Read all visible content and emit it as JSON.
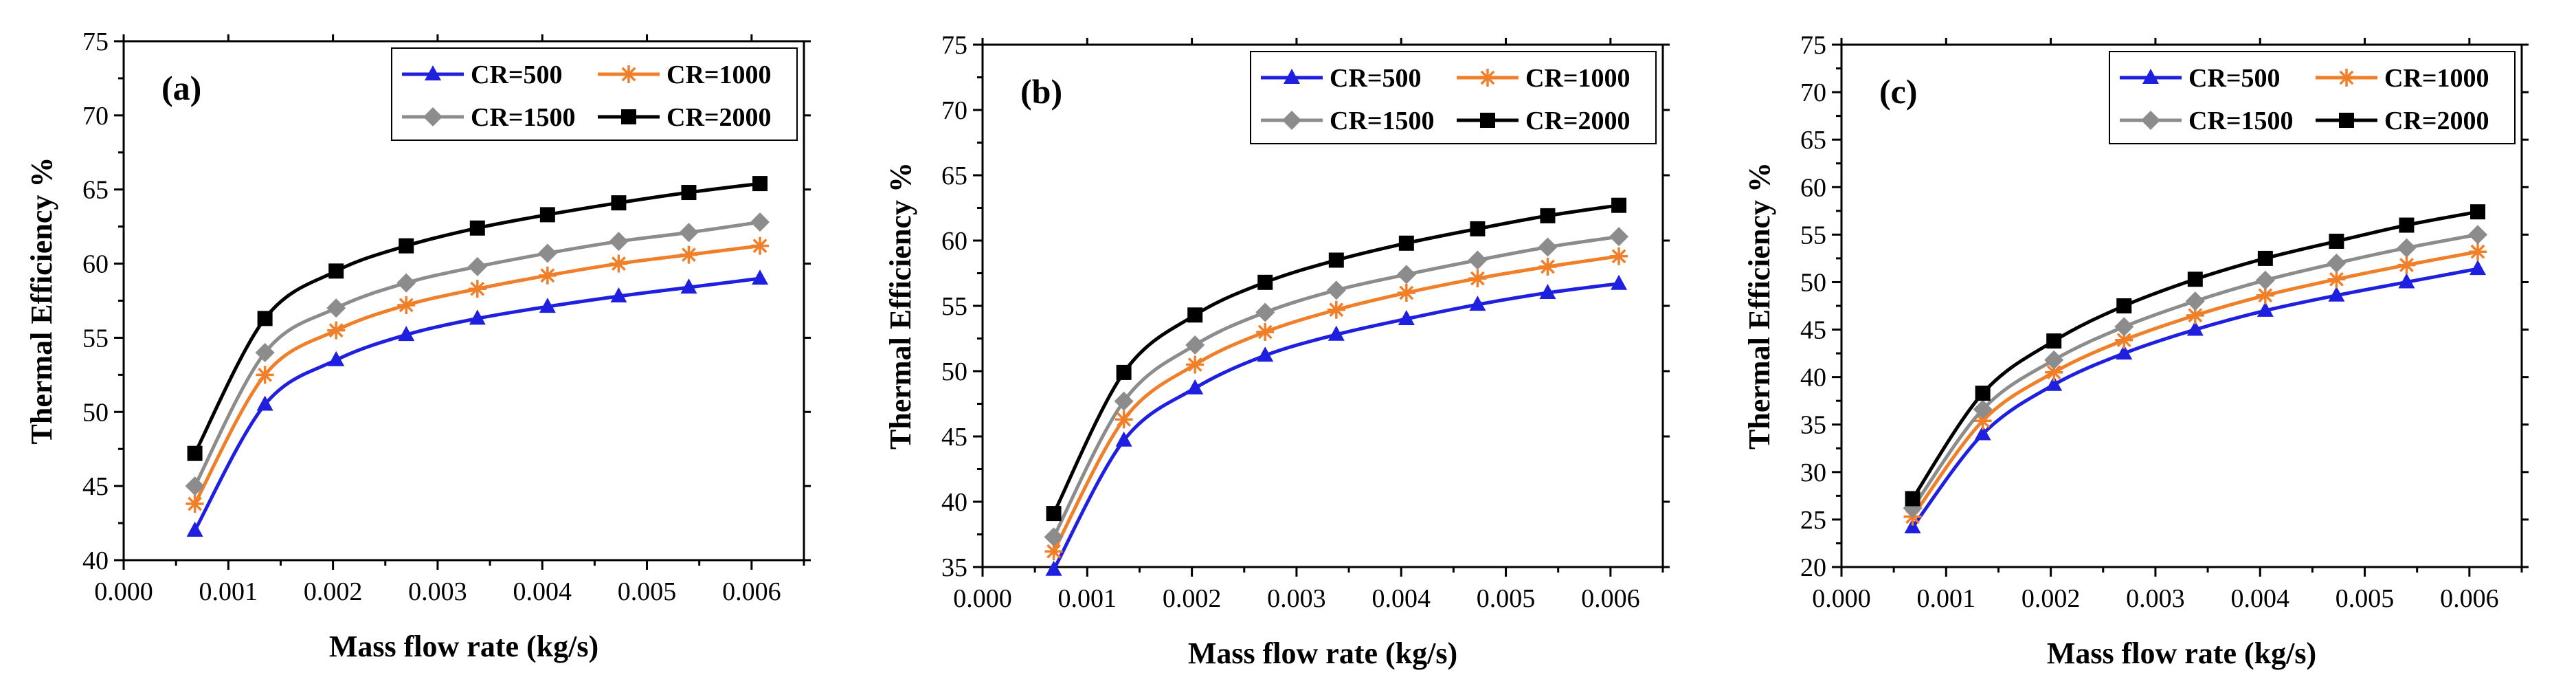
{
  "figure": {
    "colors": {
      "CR=500": "#1f1fe0",
      "CR=1000": "#f07f2a",
      "CR=1500": "#8c8c8c",
      "CR=2000": "#000000"
    },
    "markers": {
      "CR=500": "triangle",
      "CR=1000": "star",
      "CR=1500": "diamond",
      "CR=2000": "square"
    }
  },
  "chart_data": [
    {
      "type": "line",
      "panel_label": "(a)",
      "xlabel": "Mass flow rate (kg/s)",
      "ylabel": "Thermal Efficiency %",
      "xlim": [
        0.0,
        0.0065
      ],
      "ylim": [
        40,
        75
      ],
      "xticks": [
        "0.000",
        "0.001",
        "0.002",
        "0.003",
        "0.004",
        "0.005",
        "0.006"
      ],
      "yticks": [
        "40",
        "45",
        "50",
        "55",
        "60",
        "65",
        "70",
        "75"
      ],
      "x": [
        0.00068,
        0.00135,
        0.00203,
        0.0027,
        0.00338,
        0.00405,
        0.00473,
        0.0054,
        0.00608
      ],
      "series": [
        {
          "name": "CR=500",
          "values": [
            42.0,
            50.5,
            53.5,
            55.2,
            56.3,
            57.1,
            57.8,
            58.4,
            59.0
          ]
        },
        {
          "name": "CR=1000",
          "values": [
            43.8,
            52.5,
            55.5,
            57.2,
            58.3,
            59.2,
            60.0,
            60.6,
            61.2
          ]
        },
        {
          "name": "CR=1500",
          "values": [
            45.0,
            54.0,
            57.0,
            58.7,
            59.8,
            60.7,
            61.5,
            62.1,
            62.8
          ]
        },
        {
          "name": "CR=2000",
          "values": [
            47.2,
            56.3,
            59.5,
            61.2,
            62.4,
            63.3,
            64.1,
            64.8,
            65.4
          ]
        }
      ],
      "legend": [
        "CR=500",
        "CR=1000",
        "CR=1500",
        "CR=2000"
      ]
    },
    {
      "type": "line",
      "panel_label": "(b)",
      "xlabel": "Mass flow rate (kg/s)",
      "ylabel": "Thermal Efficiency %",
      "xlim": [
        0.0,
        0.0065
      ],
      "ylim": [
        35,
        75
      ],
      "xticks": [
        "0.000",
        "0.001",
        "0.002",
        "0.003",
        "0.004",
        "0.005",
        "0.006"
      ],
      "yticks": [
        "35",
        "40",
        "45",
        "50",
        "55",
        "60",
        "65",
        "70",
        "75"
      ],
      "x": [
        0.00068,
        0.00135,
        0.00203,
        0.0027,
        0.00338,
        0.00405,
        0.00473,
        0.0054,
        0.00608
      ],
      "series": [
        {
          "name": "CR=500",
          "values": [
            34.8,
            44.7,
            48.7,
            51.2,
            52.8,
            54.0,
            55.1,
            56.0,
            56.7
          ]
        },
        {
          "name": "CR=1000",
          "values": [
            36.2,
            46.3,
            50.5,
            53.0,
            54.7,
            56.0,
            57.1,
            58.0,
            58.8
          ]
        },
        {
          "name": "CR=1500",
          "values": [
            37.3,
            47.7,
            52.0,
            54.5,
            56.2,
            57.4,
            58.5,
            59.5,
            60.3
          ]
        },
        {
          "name": "CR=2000",
          "values": [
            39.1,
            49.9,
            54.3,
            56.8,
            58.5,
            59.8,
            60.9,
            61.9,
            62.7
          ]
        }
      ],
      "legend": [
        "CR=500",
        "CR=1000",
        "CR=1500",
        "CR=2000"
      ]
    },
    {
      "type": "line",
      "panel_label": "(c)",
      "xlabel": "Mass flow rate (kg/s)",
      "ylabel": "Thermal Efficiency %",
      "xlim": [
        0.0,
        0.0065
      ],
      "ylim": [
        20,
        75
      ],
      "xticks": [
        "0.000",
        "0.001",
        "0.002",
        "0.003",
        "0.004",
        "0.005",
        "0.006"
      ],
      "yticks": [
        "20",
        "25",
        "30",
        "35",
        "40",
        "45",
        "50",
        "55",
        "60",
        "65",
        "70",
        "75"
      ],
      "x": [
        0.00068,
        0.00135,
        0.00203,
        0.0027,
        0.00338,
        0.00405,
        0.00473,
        0.0054,
        0.00608
      ],
      "series": [
        {
          "name": "CR=500",
          "values": [
            24.2,
            34.0,
            39.2,
            42.5,
            45.0,
            47.0,
            48.6,
            50.0,
            51.4
          ]
        },
        {
          "name": "CR=1000",
          "values": [
            25.3,
            35.4,
            40.5,
            43.9,
            46.5,
            48.6,
            50.3,
            51.8,
            53.2
          ]
        },
        {
          "name": "CR=1500",
          "values": [
            26.2,
            36.6,
            41.8,
            45.3,
            48.0,
            50.2,
            52.0,
            53.6,
            55.0
          ]
        },
        {
          "name": "CR=2000",
          "values": [
            27.2,
            38.3,
            43.8,
            47.5,
            50.3,
            52.5,
            54.3,
            56.0,
            57.4
          ]
        }
      ],
      "legend": [
        "CR=500",
        "CR=1000",
        "CR=1500",
        "CR=2000"
      ]
    }
  ]
}
